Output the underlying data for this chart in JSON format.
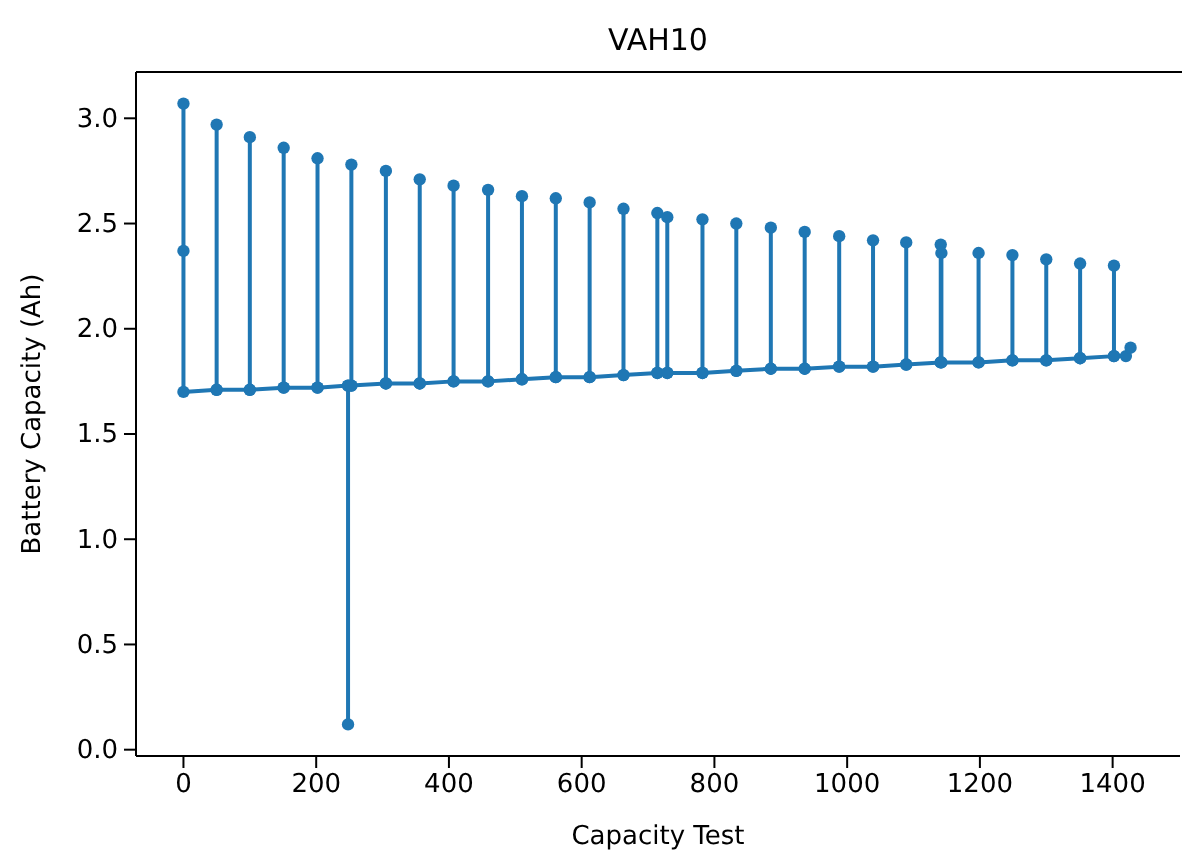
{
  "chart_data": {
    "type": "line",
    "title": "VAH10",
    "xlabel": "Capacity Test",
    "ylabel": "Battery Capacity (Ah)",
    "xlim": [
      -71.5,
      1501.5
    ],
    "xticks": [
      0,
      200,
      400,
      600,
      800,
      1000,
      1200,
      1400
    ],
    "ylim": [
      -0.03,
      3.22
    ],
    "yticks": [
      {
        "value": 0,
        "label": "0.0"
      },
      0.5,
      {
        "value": 1,
        "label": "1.0"
      },
      1.5,
      {
        "value": 2,
        "label": "2.0"
      },
      2.5,
      {
        "value": 3,
        "label": "3.0"
      }
    ],
    "marker": "circle",
    "line_style": "solid",
    "grid": false,
    "series": [
      {
        "color": "#1f77b4",
        "x": [
          0,
          0,
          0,
          50,
          50,
          50,
          100,
          100,
          100,
          151,
          151,
          151,
          202,
          202,
          202,
          248,
          248,
          248,
          253,
          253,
          253,
          305,
          305,
          305,
          356,
          356,
          356,
          407,
          407,
          407,
          459,
          459,
          459,
          510,
          510,
          510,
          561,
          561,
          561,
          612,
          612,
          612,
          663,
          663,
          663,
          714,
          714,
          714,
          729,
          729,
          729,
          782,
          782,
          782,
          833,
          833,
          833,
          885,
          885,
          885,
          936,
          936,
          936,
          988,
          988,
          988,
          1039,
          1039,
          1039,
          1089,
          1089,
          1089,
          1141,
          1141,
          1141,
          1142,
          1142,
          1198,
          1198,
          1198,
          1249,
          1249,
          1249,
          1300,
          1300,
          1300,
          1351,
          1351,
          1351,
          1402,
          1402,
          1402,
          1420,
          1427
        ],
        "values": [
          3.07,
          2.37,
          1.7,
          1.71,
          2.97,
          1.71,
          1.71,
          2.91,
          1.71,
          1.72,
          2.86,
          1.72,
          1.72,
          2.81,
          1.72,
          1.73,
          0.12,
          1.73,
          1.73,
          2.78,
          1.73,
          1.74,
          2.75,
          1.74,
          1.74,
          2.71,
          1.74,
          1.75,
          2.68,
          1.75,
          1.75,
          2.66,
          1.75,
          1.76,
          2.63,
          1.76,
          1.77,
          2.62,
          1.77,
          1.77,
          2.6,
          1.77,
          1.78,
          2.57,
          1.78,
          1.79,
          2.55,
          1.79,
          1.79,
          2.53,
          1.79,
          1.79,
          2.52,
          1.79,
          1.8,
          2.5,
          1.8,
          1.81,
          2.48,
          1.81,
          1.81,
          2.46,
          1.81,
          1.82,
          2.44,
          1.82,
          1.82,
          2.42,
          1.82,
          1.83,
          2.41,
          1.83,
          1.84,
          2.4,
          1.84,
          2.36,
          1.84,
          1.84,
          2.36,
          1.84,
          1.85,
          2.35,
          1.85,
          1.85,
          2.33,
          1.85,
          1.86,
          2.31,
          1.86,
          1.87,
          2.3,
          1.87,
          1.87,
          1.91
        ]
      }
    ]
  }
}
